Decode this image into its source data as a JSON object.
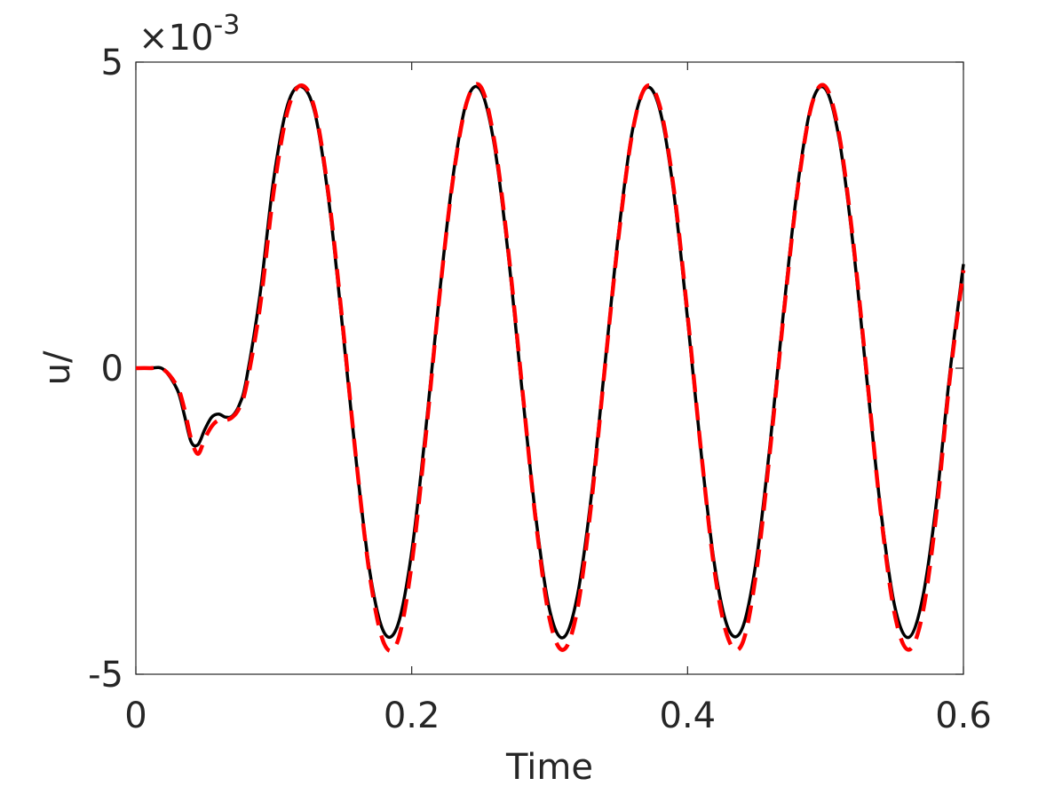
{
  "chart_data": {
    "type": "line",
    "xlabel": "Time",
    "ylabel": "u/",
    "y_multiplier": {
      "base": "×10",
      "exponent": "-3"
    },
    "xlim": [
      0,
      0.6
    ],
    "ylim": [
      -5,
      5
    ],
    "xticks": [
      0,
      0.2,
      0.4,
      0.6
    ],
    "yticks": [
      -5,
      0,
      5
    ],
    "grid": false,
    "box": true,
    "x": [
      0,
      0.01,
      0.02,
      0.03,
      0.035,
      0.04,
      0.045,
      0.05,
      0.055,
      0.06,
      0.065,
      0.07,
      0.075,
      0.08,
      0.09,
      0.1,
      0.11,
      0.12,
      0.13,
      0.14,
      0.15,
      0.16,
      0.17,
      0.18,
      0.19,
      0.2,
      0.21,
      0.22,
      0.23,
      0.24,
      0.25,
      0.26,
      0.27,
      0.28,
      0.29,
      0.3,
      0.31,
      0.32,
      0.33,
      0.34,
      0.35,
      0.36,
      0.37,
      0.38,
      0.39,
      0.4,
      0.41,
      0.42,
      0.43,
      0.44,
      0.45,
      0.46,
      0.47,
      0.48,
      0.49,
      0.5,
      0.51,
      0.52,
      0.53,
      0.54,
      0.55,
      0.56,
      0.57,
      0.58,
      0.59,
      0.6
    ],
    "series": [
      {
        "color": "#000000",
        "dash": false,
        "values": [
          0,
          0,
          -0.02,
          -0.35,
          -0.75,
          -1.2,
          -1.25,
          -1.0,
          -0.8,
          -0.75,
          -0.8,
          -0.78,
          -0.6,
          -0.2,
          1.2,
          3.1,
          4.3,
          4.6,
          4.15,
          2.71,
          0.63,
          -1.57,
          -3.38,
          -4.32,
          -4.19,
          -3.0,
          -1.04,
          1.18,
          3.14,
          4.37,
          4.54,
          3.63,
          1.85,
          -0.36,
          -2.44,
          -3.95,
          -4.4,
          -3.73,
          -2.13,
          0.04,
          2.21,
          3.88,
          4.58,
          4.21,
          2.86,
          0.8,
          -1.42,
          -3.28,
          -4.28,
          -4.23,
          -3.11,
          -1.2,
          1.02,
          3.01,
          4.32,
          4.56,
          3.73,
          2.01,
          -0.19,
          -2.31,
          -3.87,
          -4.4,
          -3.8,
          -2.27,
          -0.11,
          1.7
        ]
      },
      {
        "color": "#ff0000",
        "dash": true,
        "values": [
          0,
          0,
          -0.02,
          -0.3,
          -0.65,
          -1.15,
          -1.4,
          -1.15,
          -0.95,
          -0.85,
          -0.85,
          -0.8,
          -0.65,
          -0.3,
          1.0,
          2.9,
          4.2,
          4.62,
          4.2,
          2.78,
          0.7,
          -1.55,
          -3.45,
          -4.5,
          -4.45,
          -3.2,
          -1.15,
          1.15,
          3.1,
          4.35,
          4.6,
          3.7,
          1.92,
          -0.3,
          -2.5,
          -4.1,
          -4.6,
          -3.95,
          -2.25,
          0.0,
          2.15,
          3.85,
          4.6,
          4.27,
          2.93,
          0.87,
          -1.4,
          -3.38,
          -4.45,
          -4.48,
          -3.3,
          -1.3,
          0.95,
          2.95,
          4.3,
          4.6,
          3.8,
          2.08,
          -0.12,
          -2.35,
          -4.0,
          -4.6,
          -4.05,
          -2.45,
          -0.2,
          1.6
        ]
      }
    ]
  }
}
